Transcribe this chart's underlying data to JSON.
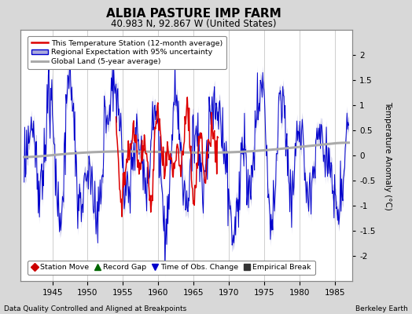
{
  "title": "ALBIA PASTURE IMP FARM",
  "subtitle": "40.983 N, 92.867 W (United States)",
  "ylabel": "Temperature Anomaly (°C)",
  "xlabel_note": "Data Quality Controlled and Aligned at Breakpoints",
  "source_note": "Berkeley Earth",
  "xlim": [
    1940.5,
    1987.5
  ],
  "ylim": [
    -2.5,
    2.5
  ],
  "xticks": [
    1945,
    1950,
    1955,
    1960,
    1965,
    1970,
    1975,
    1980,
    1985
  ],
  "yticks": [
    -2,
    -1.5,
    -1,
    -0.5,
    0,
    0.5,
    1,
    1.5,
    2
  ],
  "yticklabels": [
    "-2",
    "-1.5",
    "-1",
    "-0.5",
    "0",
    "0.5",
    "1",
    "1.5",
    "2"
  ],
  "bg_color": "#d8d8d8",
  "plot_bg_color": "#ffffff",
  "grid_color": "#bbbbbb",
  "red_color": "#dd0000",
  "blue_color": "#0000cc",
  "blue_fill_color": "#aaaadd",
  "gray_color": "#aaaaaa",
  "legend1_labels": [
    "This Temperature Station (12-month average)",
    "Regional Expectation with 95% uncertainty",
    "Global Land (5-year average)"
  ],
  "legend2_labels": [
    "Station Move",
    "Record Gap",
    "Time of Obs. Change",
    "Empirical Break"
  ],
  "legend2_colors": [
    "#cc0000",
    "#006600",
    "#0000cc",
    "#333333"
  ],
  "legend2_markers": [
    "D",
    "^",
    "v",
    "s"
  ],
  "years_start": 1941.0,
  "years_end": 1987.0
}
